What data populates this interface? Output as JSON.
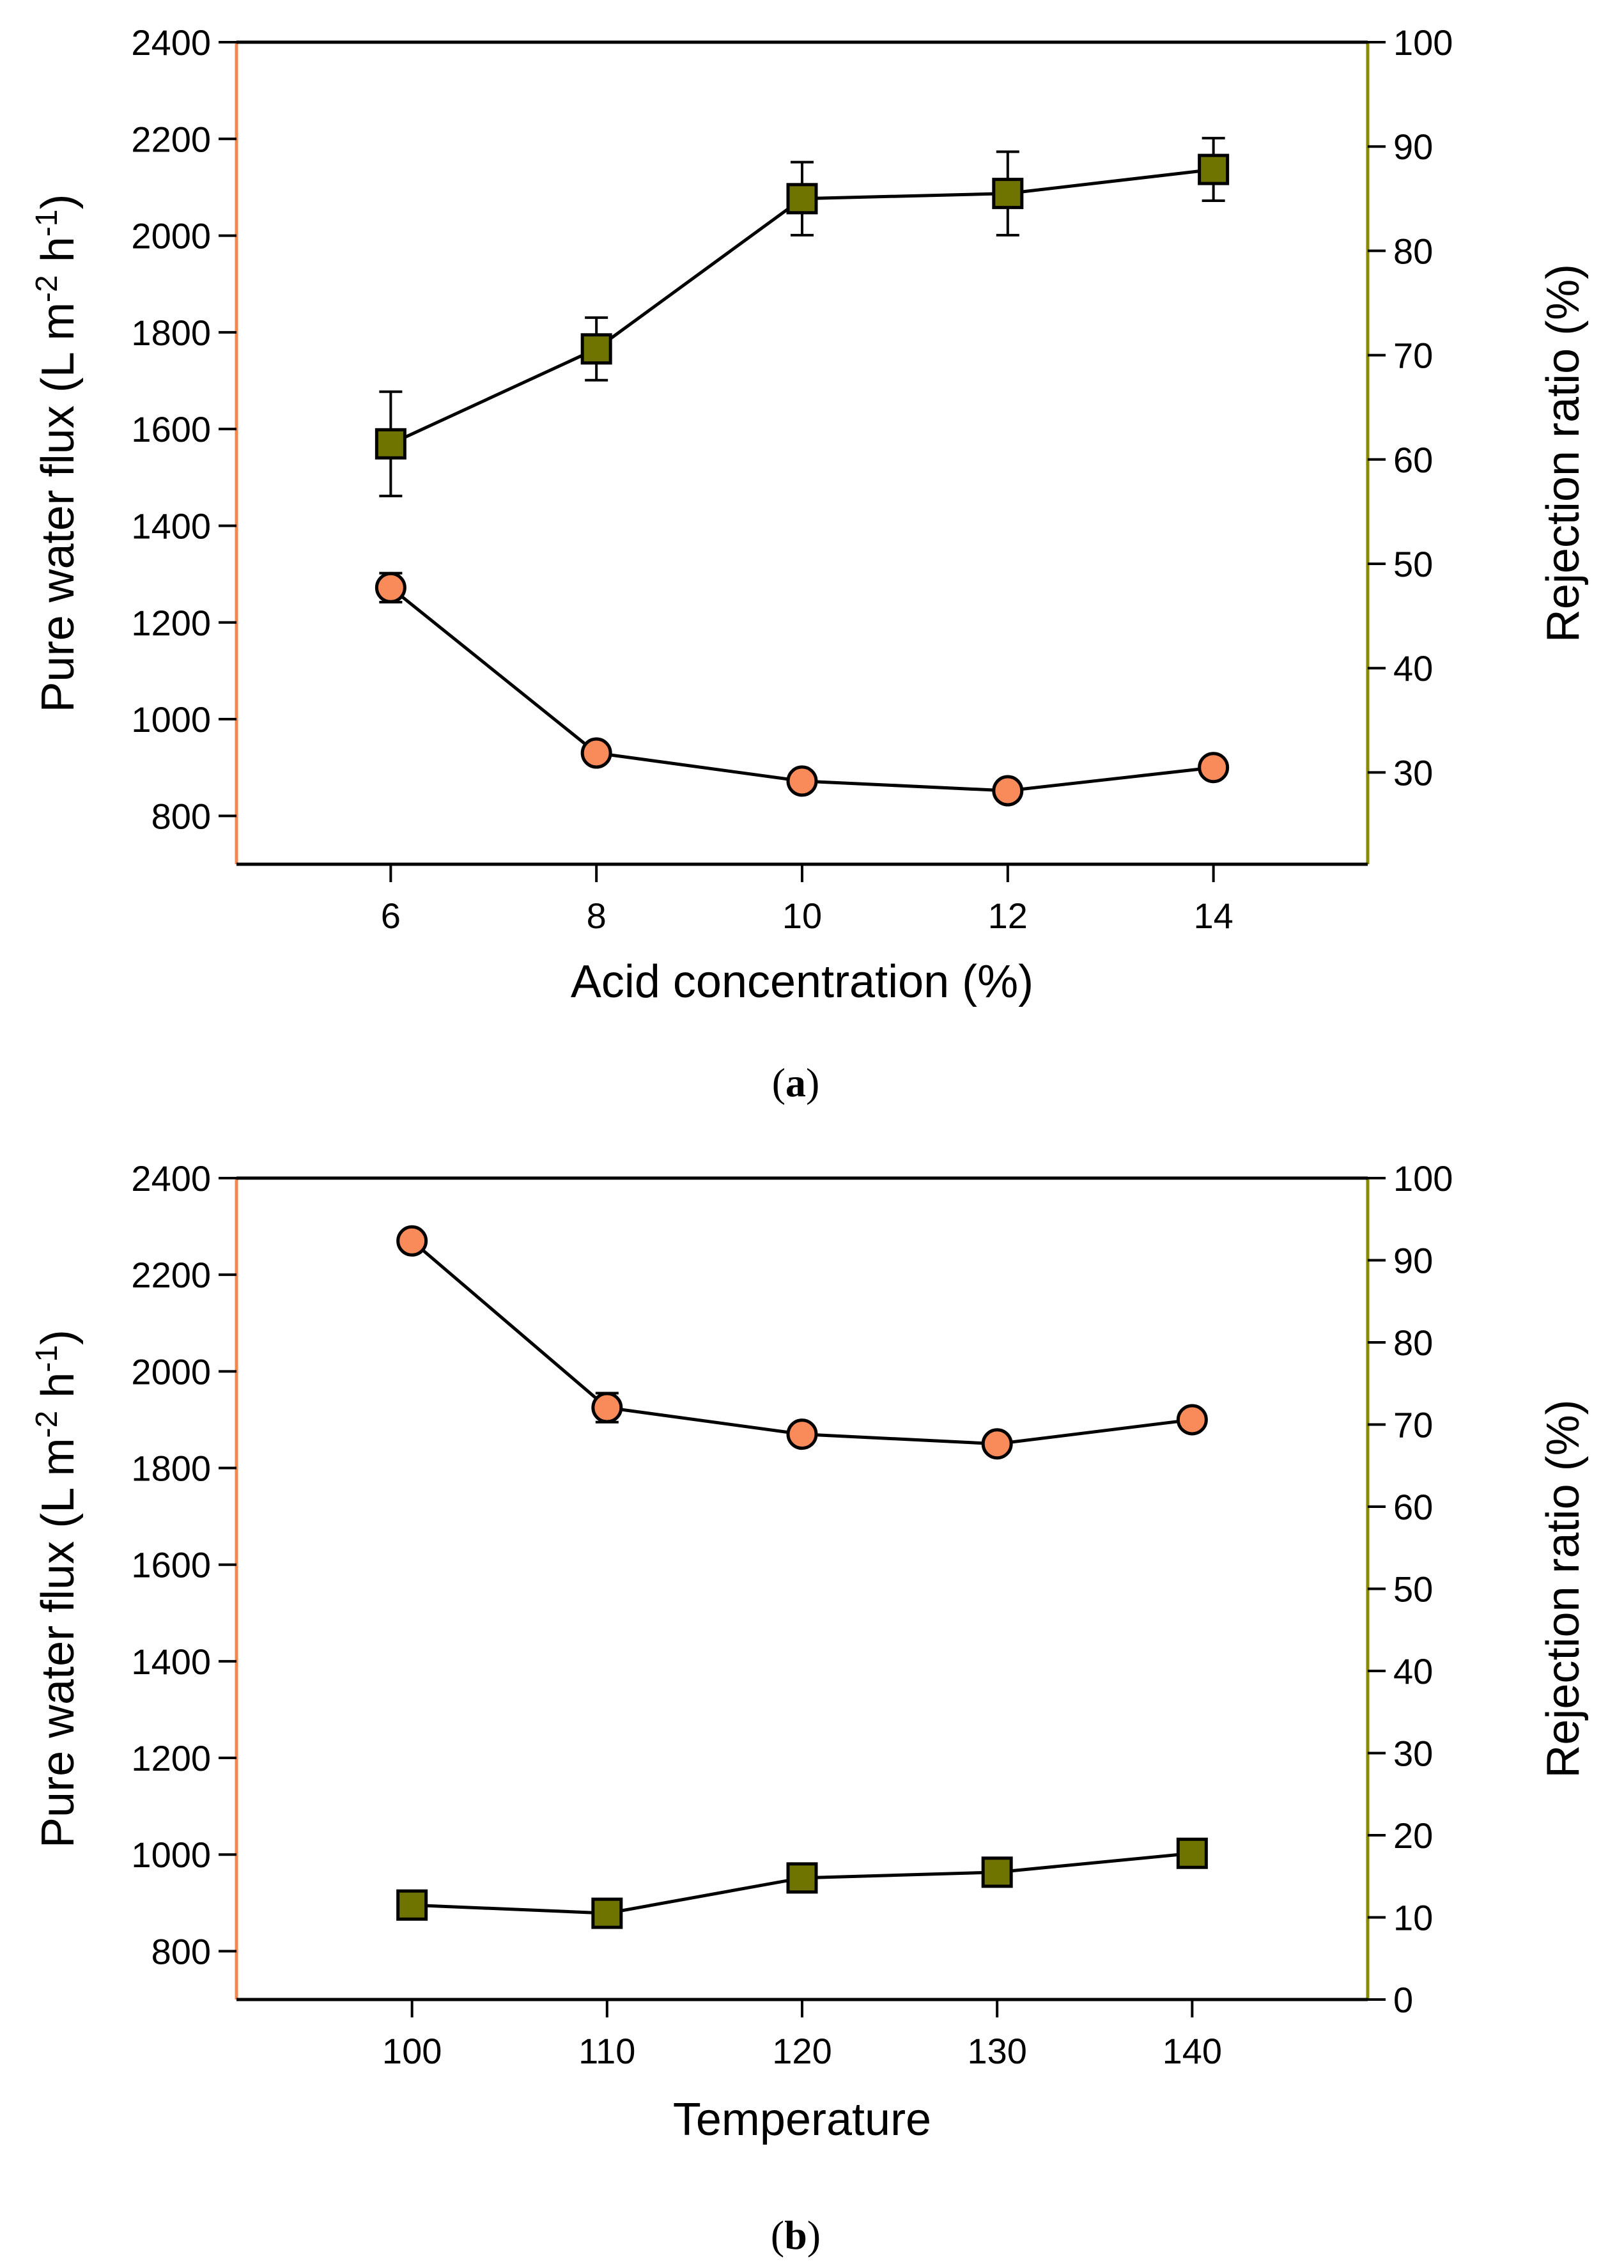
{
  "colors": {
    "flux_axis": "#f0884f",
    "rejection_axis": "#8a8a00",
    "circle_fill": "#f98a5a",
    "square_fill": "#6f7300",
    "line": "#000000"
  },
  "chart_data": [
    {
      "type": "line",
      "panel": "a",
      "panel_label": {
        "open": "(",
        "letter": "a",
        "close": ")"
      },
      "xlabel": "Acid concentration (%)",
      "ylabel_prefix": "Pure water flux (L m",
      "ylabel_sup1": "-2",
      "ylabel_mid": " h",
      "ylabel_sup2": "-1",
      "ylabel_suffix": ")",
      "y2label": "Rejection ratio (%)",
      "xlim": [
        4.5,
        15.5
      ],
      "ylim": [
        700,
        2400
      ],
      "y2lim": [
        21.2,
        100
      ],
      "x_ticks": [
        6,
        8,
        10,
        12,
        14
      ],
      "y_ticks": [
        800,
        1000,
        1200,
        1400,
        1600,
        1800,
        2000,
        2200,
        2400
      ],
      "y2_ticks": [
        30,
        40,
        50,
        60,
        70,
        80,
        90,
        100
      ],
      "series": [
        {
          "name": "Pure water flux",
          "axis": "left",
          "marker": "circle",
          "x": [
            6,
            8,
            10,
            12,
            14
          ],
          "values": [
            1272,
            930,
            872,
            852,
            900
          ],
          "errors": [
            30,
            15,
            15,
            20,
            15
          ]
        },
        {
          "name": "Rejection ratio",
          "axis": "right",
          "marker": "square",
          "x": [
            6,
            8,
            10,
            12,
            14
          ],
          "values": [
            61.5,
            70.6,
            85.0,
            85.5,
            87.8
          ],
          "errors": [
            5.0,
            3.0,
            3.5,
            4.0,
            3.0
          ]
        }
      ]
    },
    {
      "type": "line",
      "panel": "b",
      "panel_label": {
        "open": "(",
        "letter": "b",
        "close": ")"
      },
      "xlabel": "Temperature",
      "ylabel_prefix": "Pure water flux (L m",
      "ylabel_sup1": "-2",
      "ylabel_mid": " h",
      "ylabel_sup2": "-1",
      "ylabel_suffix": ")",
      "y2label": "Rejection ratio (%)",
      "xlim": [
        91,
        149
      ],
      "ylim": [
        700,
        2400
      ],
      "y2lim": [
        0,
        100
      ],
      "x_ticks": [
        100,
        110,
        120,
        130,
        140
      ],
      "y_ticks": [
        800,
        1000,
        1200,
        1400,
        1600,
        1800,
        2000,
        2200,
        2400
      ],
      "y2_ticks": [
        0,
        10,
        20,
        30,
        40,
        50,
        60,
        70,
        80,
        90,
        100
      ],
      "series": [
        {
          "name": "Pure water flux",
          "axis": "left",
          "marker": "circle",
          "x": [
            100,
            110,
            120,
            130,
            140
          ],
          "values": [
            2270,
            1925,
            1870,
            1850,
            1900
          ],
          "errors": [
            10,
            30,
            10,
            10,
            10
          ]
        },
        {
          "name": "Rejection ratio",
          "axis": "right",
          "marker": "square",
          "x": [
            100,
            110,
            120,
            130,
            140
          ],
          "values": [
            11.5,
            10.5,
            14.8,
            15.5,
            17.8
          ],
          "errors": [
            0.5,
            0.5,
            0.5,
            0.5,
            0.5
          ]
        }
      ]
    }
  ]
}
